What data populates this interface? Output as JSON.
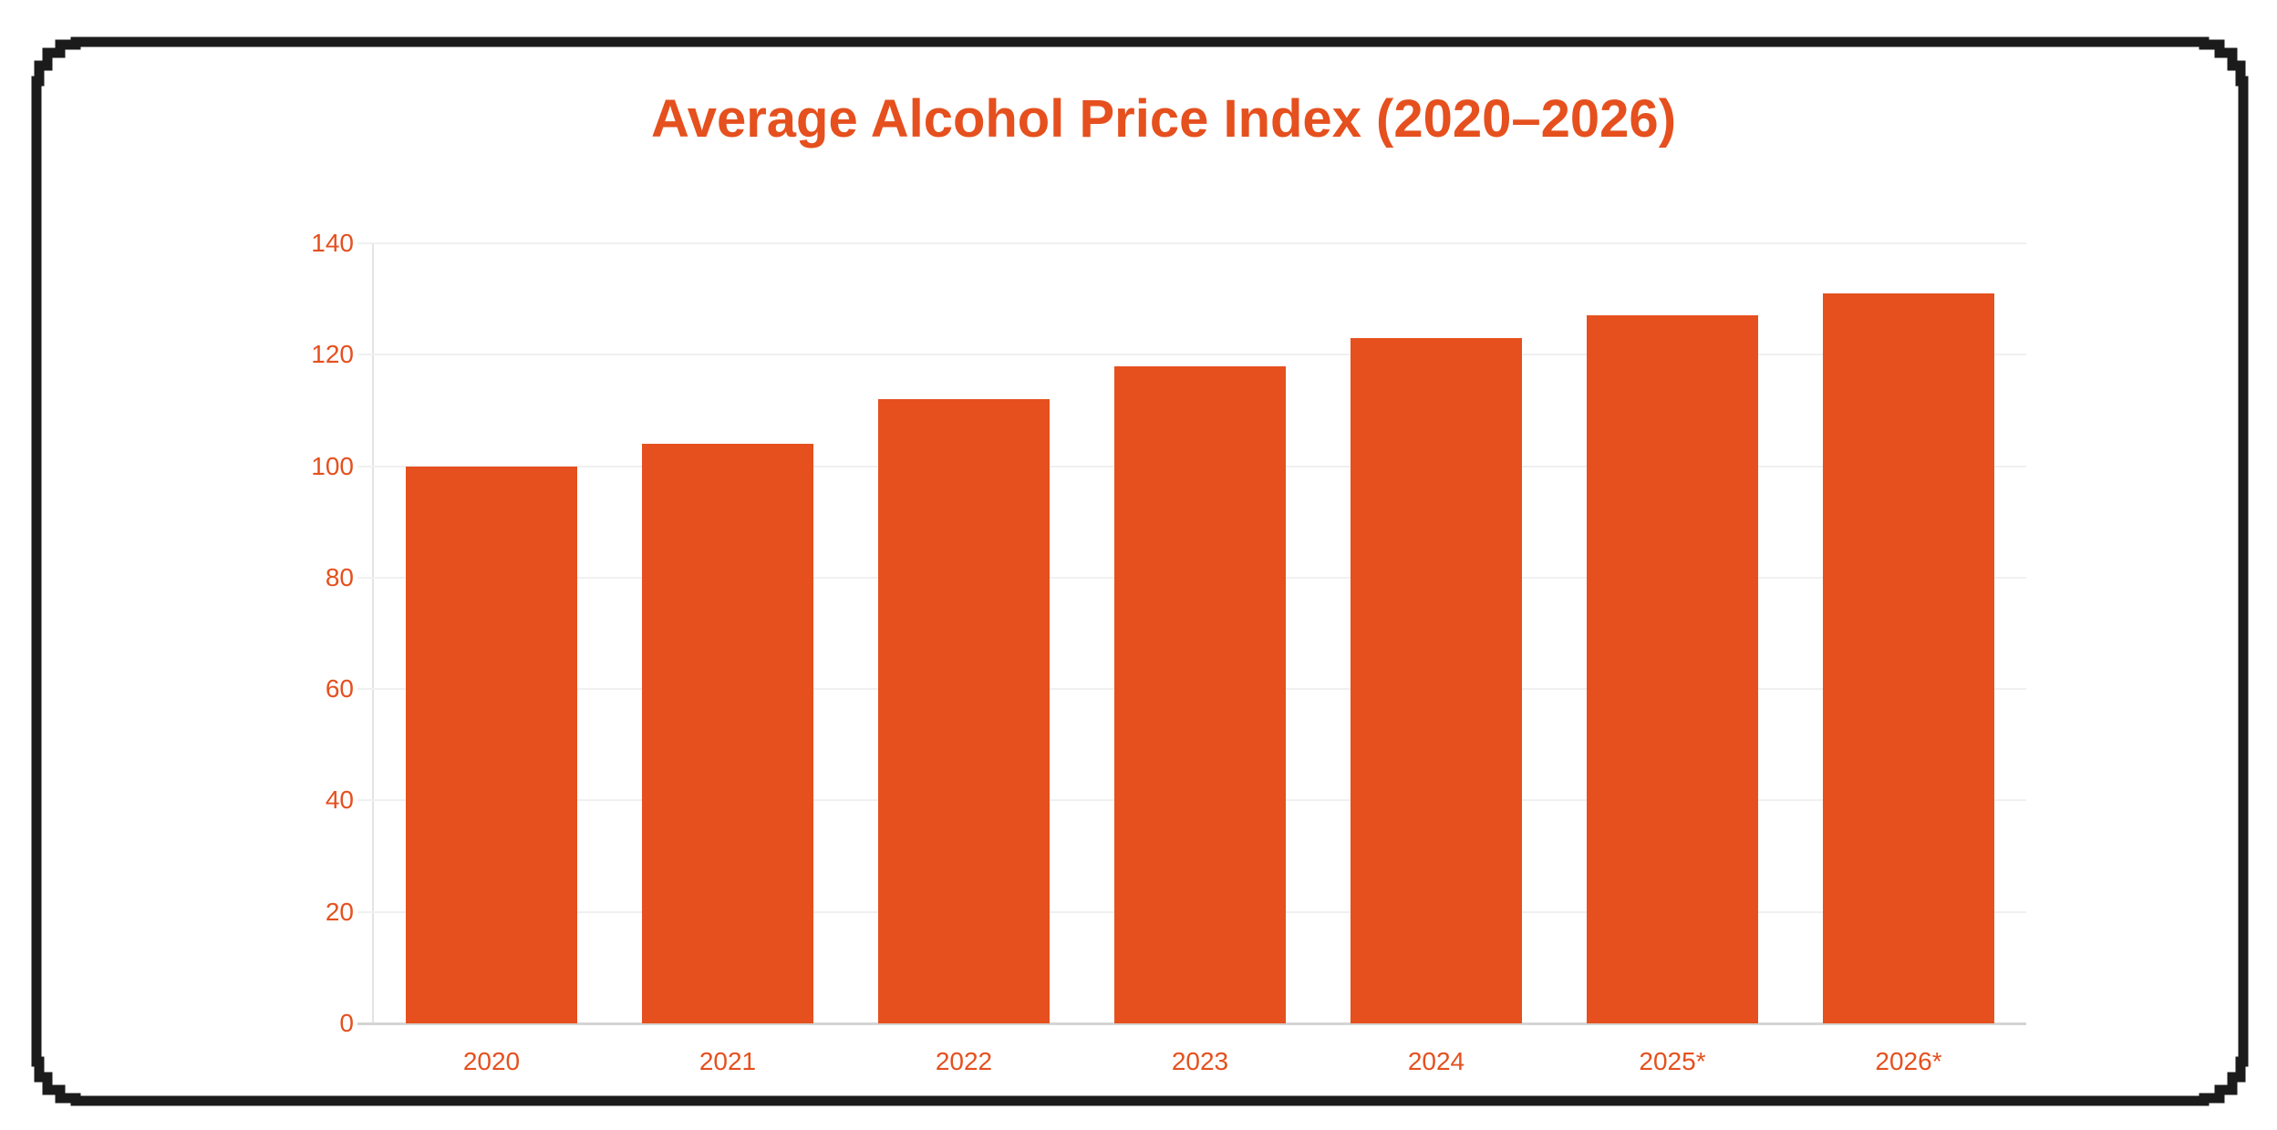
{
  "page": {
    "background": "#ffffff",
    "frame_color": "#1b1b1b"
  },
  "chart_data": {
    "type": "bar",
    "title": "Average Alcohol Price Index (2020–2026)",
    "categories": [
      "2020",
      "2021",
      "2022",
      "2023",
      "2024",
      "2025*",
      "2026*"
    ],
    "values": [
      100,
      104,
      112,
      118,
      123,
      127,
      131
    ],
    "xlabel": "",
    "ylabel": "",
    "ylim": [
      0,
      140
    ],
    "yticks": [
      0,
      20,
      40,
      60,
      80,
      100,
      120,
      140
    ],
    "grid": "horizontal",
    "legend": "none",
    "bar_color": "#e5501e",
    "title_color": "#e5501e",
    "tick_label_color": "#e5501e",
    "gridline_color": "#f0f0f0",
    "axis_line_color": "#e3e3e3",
    "baseline_color": "#d4d4d4"
  }
}
